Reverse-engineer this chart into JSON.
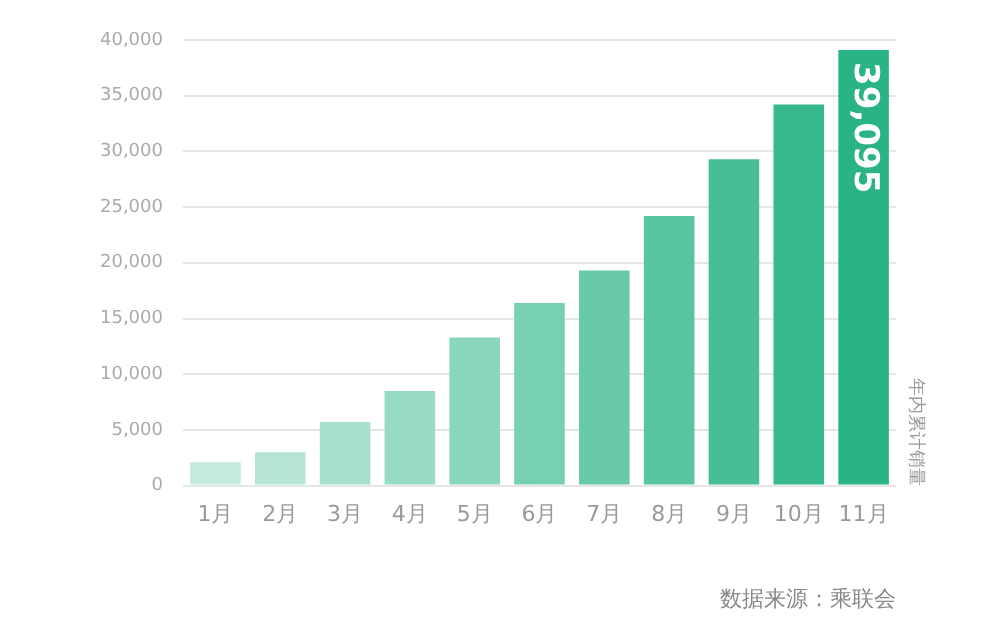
{
  "chart_data": {
    "type": "bar",
    "ylabel": "年内累计销量",
    "categories": [
      "1月",
      "2月",
      "3月",
      "4月",
      "5月",
      "6月",
      "7月",
      "8月",
      "9月",
      "10月",
      "11月"
    ],
    "values": [
      2100,
      3000,
      5700,
      8500,
      13300,
      16400,
      19300,
      24200,
      29300,
      34200,
      39095
    ],
    "colors": [
      "#c3eadc",
      "#b5e6d5",
      "#a6e1cd",
      "#98dcc5",
      "#88d6bc",
      "#78d0b2",
      "#68caa9",
      "#58c4a0",
      "#48be97",
      "#38b88e",
      "#2bb388"
    ],
    "value_labels": [
      null,
      null,
      null,
      null,
      null,
      null,
      null,
      null,
      null,
      null,
      "39,095"
    ],
    "ylim": [
      0,
      40000
    ],
    "yticks": [
      {
        "value": 0,
        "label": "0"
      },
      {
        "value": 5000,
        "label": "5,000"
      },
      {
        "value": 10000,
        "label": "10,000"
      },
      {
        "value": 15000,
        "label": "15,000"
      },
      {
        "value": 20000,
        "label": "20,000"
      },
      {
        "value": 25000,
        "label": "25,000"
      },
      {
        "value": 30000,
        "label": "30,000"
      },
      {
        "value": 35000,
        "label": "35,000"
      },
      {
        "value": 40000,
        "label": "40,000"
      }
    ],
    "grid": "y",
    "annotations": [
      "数据来源：乘联会"
    ]
  }
}
